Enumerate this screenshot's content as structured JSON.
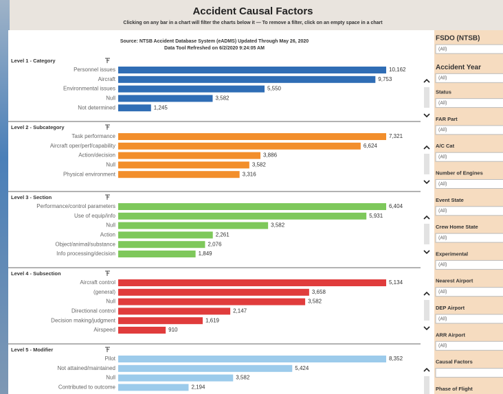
{
  "header": {
    "title": "Accident Causal Factors",
    "subtitle": "Clicking on any bar in a chart will filter the charts below it  —  To remove a filter, click on an empty space in a chart"
  },
  "source": {
    "line1": "Source: NTSB Accident Database System (eADMS) Updated Through May 26, 2020",
    "line2": "Data Tool Refreshed on 6/2/2020 9:24:05 AM"
  },
  "panels": [
    {
      "type": "bar",
      "title": "Level 1 - Category",
      "color": "#2f6db5",
      "categories": [
        "Personnel issues",
        "Aircraft",
        "Environmental issues",
        "Null",
        "Not determined"
      ],
      "values": [
        10162,
        9753,
        5550,
        3582,
        1245
      ],
      "value_labels": [
        "10,162",
        "9,753",
        "5,550",
        "3,582",
        "1,245"
      ]
    },
    {
      "type": "bar",
      "title": "Level 2 - Subcategory",
      "color": "#f28e2b",
      "categories": [
        "Task performance",
        "Aircraft oper/perf/capability",
        "Action/decision",
        "Null",
        "Physical environment"
      ],
      "values": [
        7321,
        6624,
        3886,
        3582,
        3316
      ],
      "value_labels": [
        "7,321",
        "6,624",
        "3,886",
        "3,582",
        "3,316"
      ]
    },
    {
      "type": "bar",
      "title": "Level 3 - Section",
      "color": "#7ec85b",
      "categories": [
        "Performance/control parameters",
        "Use of equip/info",
        "Null",
        "Action",
        "Object/animal/substance",
        "Info processing/decision"
      ],
      "values": [
        6404,
        5931,
        3582,
        2261,
        2076,
        1849
      ],
      "value_labels": [
        "6,404",
        "5,931",
        "3,582",
        "2,261",
        "2,076",
        "1,849"
      ]
    },
    {
      "type": "bar",
      "title": "Level 4 - Subsection",
      "color": "#e03c3c",
      "categories": [
        "Aircraft control",
        "(general)",
        "Null",
        "Directional control",
        "Decision making/judgment",
        "Airspeed"
      ],
      "values": [
        5134,
        3658,
        3582,
        2147,
        1619,
        910
      ],
      "value_labels": [
        "5,134",
        "3,658",
        "3,582",
        "2,147",
        "1,619",
        "910"
      ]
    },
    {
      "type": "bar",
      "title": "Level 5 - Modifier",
      "color": "#9ccbeb",
      "categories": [
        "Pilot",
        "Not attained/maintained",
        "Null",
        "Contributed to outcome"
      ],
      "values": [
        8352,
        5424,
        3582,
        2194
      ],
      "value_labels": [
        "8,352",
        "5,424",
        "3,582",
        "2,194"
      ]
    }
  ],
  "filters": [
    {
      "label": "FSDO (NTSB)",
      "value": "(All)"
    },
    {
      "label": "Accident Year",
      "value": "(All)"
    },
    {
      "label": "Status",
      "value": "(All)"
    },
    {
      "label": "FAR Part",
      "value": "(All)"
    },
    {
      "label": "A/C Cat",
      "value": "(All)"
    },
    {
      "label": "Number of Engines",
      "value": "(All)"
    },
    {
      "label": "Event State",
      "value": "(All)"
    },
    {
      "label": "Crew Home State",
      "value": "(All)"
    },
    {
      "label": "Experimental",
      "value": "(All)"
    },
    {
      "label": "Nearest Airport",
      "value": "(All)"
    },
    {
      "label": "DEP Airport",
      "value": "(All)"
    },
    {
      "label": "ARR Airport",
      "value": "(All)"
    },
    {
      "label": "Causal Factors"
    },
    {
      "label": "Phase of Flight"
    }
  ]
}
